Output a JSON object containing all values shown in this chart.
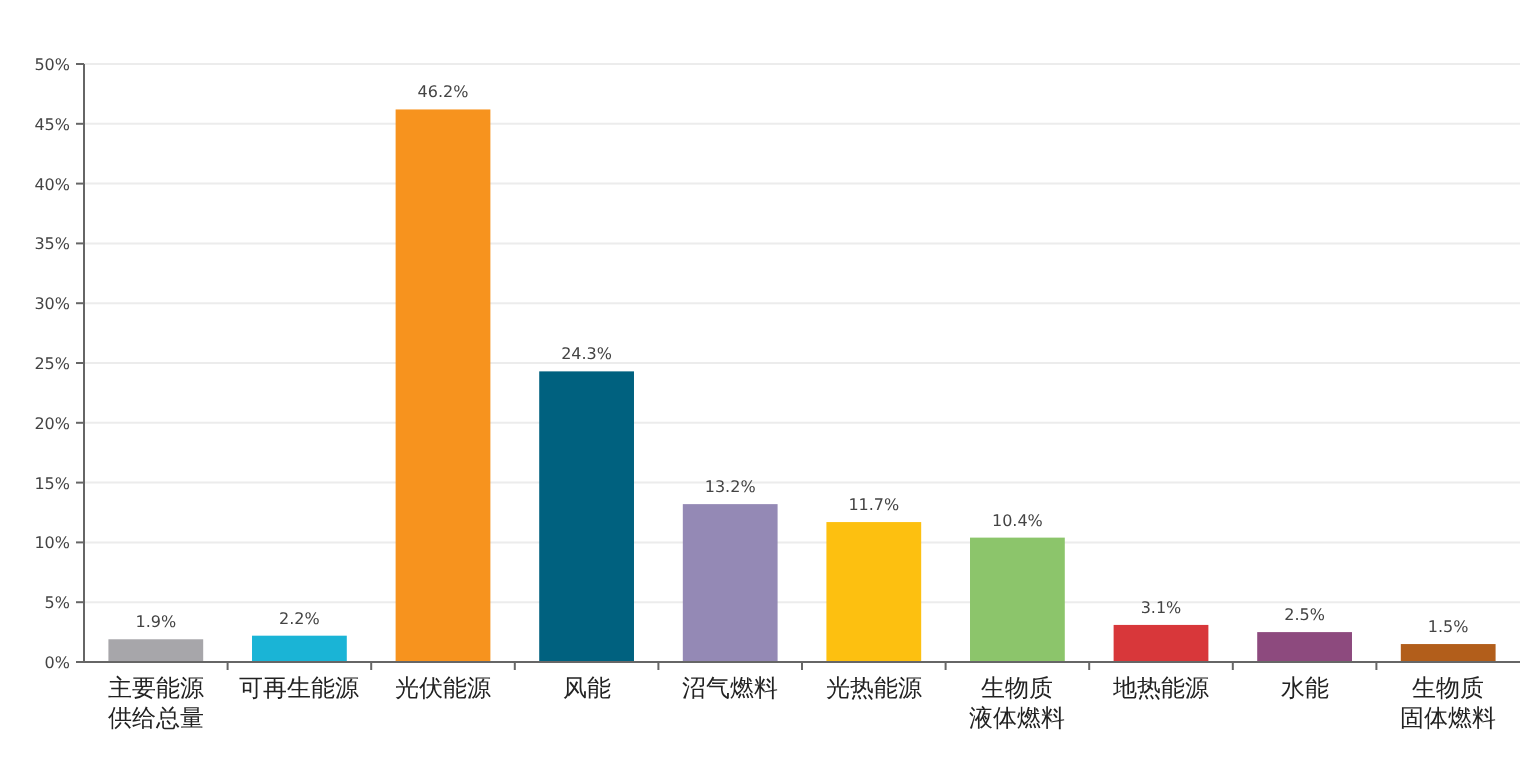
{
  "chart_data": {
    "type": "bar",
    "categories": [
      "主要能源供给总量",
      "可再生能源",
      "光伏能源",
      "风能",
      "沼气燃料",
      "光热能源",
      "生物质液体燃料",
      "地热能源",
      "水能",
      "生物质固体燃料"
    ],
    "values": [
      1.9,
      2.2,
      46.2,
      24.3,
      13.2,
      11.7,
      10.4,
      3.1,
      2.5,
      1.5
    ],
    "colors": [
      "#a7a6aa",
      "#1ab4d6",
      "#f7931e",
      "#00617f",
      "#9489b5",
      "#fdc010",
      "#8cc56b",
      "#d8373a",
      "#8d4a7e",
      "#b25e1b"
    ],
    "value_labels": [
      "1.9%",
      "2.2%",
      "46.2%",
      "24.3%",
      "13.2%",
      "11.7%",
      "10.4%",
      "3.1%",
      "2.5%",
      "1.5%"
    ],
    "ylim": [
      0,
      50
    ],
    "yticks": [
      {
        "value": 0,
        "label": "0%"
      },
      {
        "value": 5,
        "label": "5%"
      },
      {
        "value": 10,
        "label": "10%"
      },
      {
        "value": 15,
        "label": "15%"
      },
      {
        "value": 20,
        "label": "20%"
      },
      {
        "value": 25,
        "label": "25%"
      },
      {
        "value": 30,
        "label": "30%"
      },
      {
        "value": 35,
        "label": "35%"
      },
      {
        "value": 40,
        "label": "40%"
      },
      {
        "value": 45,
        "label": "45%"
      },
      {
        "value": 50,
        "label": "50%"
      }
    ],
    "grid": "y"
  }
}
